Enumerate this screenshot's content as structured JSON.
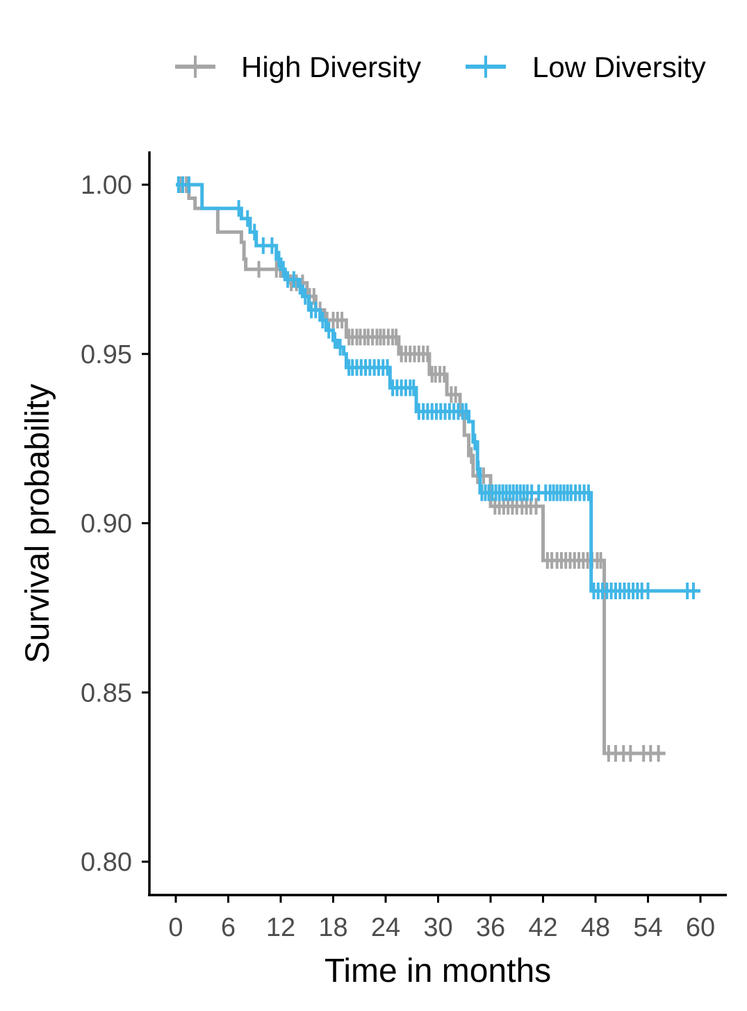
{
  "chart_data": {
    "type": "line",
    "subtype": "kaplan-meier step",
    "xlabel": "Time in months",
    "ylabel": "Survival probability",
    "xlim": [
      -2.5,
      63.5
    ],
    "ylim": [
      0.79,
      1.01
    ],
    "xticks": [
      0,
      6,
      12,
      18,
      24,
      30,
      36,
      42,
      48,
      54,
      60
    ],
    "yticks": [
      0.8,
      0.85,
      0.9,
      0.95,
      1.0
    ],
    "ytick_labels": [
      "0.80",
      "0.85",
      "0.90",
      "0.95",
      "1.00"
    ],
    "grid": false,
    "legend_position": "top",
    "series": [
      {
        "name": "High Diversity",
        "color": "#A6A6A6",
        "steps": [
          [
            0,
            1.0
          ],
          [
            1.5,
            0.996
          ],
          [
            2.2,
            0.993
          ],
          [
            4.8,
            0.986
          ],
          [
            7.5,
            0.983
          ],
          [
            7.8,
            0.978
          ],
          [
            8,
            0.975
          ],
          [
            11,
            0.975
          ],
          [
            12,
            0.973
          ],
          [
            13,
            0.971
          ],
          [
            15,
            0.967
          ],
          [
            16,
            0.963
          ],
          [
            17,
            0.96
          ],
          [
            19.5,
            0.955
          ],
          [
            25.5,
            0.95
          ],
          [
            29,
            0.944
          ],
          [
            31,
            0.938
          ],
          [
            32.5,
            0.932
          ],
          [
            33,
            0.926
          ],
          [
            33.5,
            0.92
          ],
          [
            34,
            0.914
          ],
          [
            36,
            0.905
          ],
          [
            42,
            0.889
          ],
          [
            49,
            0.832
          ],
          [
            56,
            0.832
          ]
        ],
        "censors": [
          0.5,
          1.2,
          9.5,
          11.5,
          13.2,
          13.8,
          14.5,
          15.3,
          15.8,
          16.5,
          17.3,
          18,
          18.5,
          19,
          19.8,
          20.2,
          20.7,
          21.1,
          21.6,
          22,
          22.5,
          23,
          23.4,
          23.8,
          24.3,
          24.8,
          25.2,
          25.8,
          26.3,
          26.8,
          27.3,
          27.8,
          28.3,
          28.8,
          29.3,
          29.7,
          30.2,
          30.7,
          31.5,
          32,
          33.8,
          34.5,
          35.2,
          36.5,
          37,
          37.5,
          38,
          38.5,
          39,
          39.6,
          40.1,
          40.6,
          41.2,
          42.5,
          43,
          43.6,
          44.1,
          44.6,
          45.1,
          45.6,
          46.1,
          46.6,
          47.1,
          47.6,
          48.2,
          48.6,
          49.5,
          50.3,
          51.2,
          52,
          53.5,
          54.3,
          55.2
        ]
      },
      {
        "name": "Low Diversity",
        "color": "#41B6E6",
        "steps": [
          [
            0,
            1.0
          ],
          [
            3,
            0.993
          ],
          [
            7.5,
            0.99
          ],
          [
            8.5,
            0.986
          ],
          [
            9.2,
            0.982
          ],
          [
            11.5,
            0.978
          ],
          [
            12,
            0.975
          ],
          [
            12.5,
            0.972
          ],
          [
            14,
            0.97
          ],
          [
            14.5,
            0.967
          ],
          [
            15.2,
            0.963
          ],
          [
            16.5,
            0.96
          ],
          [
            17.2,
            0.957
          ],
          [
            18,
            0.954
          ],
          [
            18.5,
            0.952
          ],
          [
            19.2,
            0.95
          ],
          [
            19.5,
            0.946
          ],
          [
            24.5,
            0.94
          ],
          [
            27.5,
            0.933
          ],
          [
            33.5,
            0.93
          ],
          [
            34,
            0.924
          ],
          [
            34.5,
            0.916
          ],
          [
            34.8,
            0.909
          ],
          [
            47.5,
            0.88
          ],
          [
            60,
            0.88
          ]
        ],
        "censors": [
          0.3,
          0.8,
          1.5,
          7.2,
          8.2,
          9,
          10,
          11,
          11.8,
          12.3,
          12.8,
          13.5,
          14.2,
          14.8,
          15.5,
          16,
          16.8,
          17.5,
          18.2,
          18.8,
          19.8,
          20.2,
          20.7,
          21.2,
          21.7,
          22.2,
          22.7,
          23.2,
          23.7,
          24.2,
          24.8,
          25.3,
          25.8,
          26.3,
          26.8,
          27.2,
          27.8,
          28.3,
          28.8,
          29.3,
          29.8,
          30.3,
          30.8,
          31.3,
          31.8,
          32.3,
          32.8,
          33.2,
          34.2,
          34.6,
          35,
          35.4,
          35.8,
          36.2,
          36.6,
          37,
          37.4,
          37.8,
          38.2,
          38.6,
          39,
          39.4,
          39.8,
          40.2,
          40.7,
          41.5,
          42.3,
          42.8,
          43.2,
          43.6,
          44,
          44.4,
          44.8,
          45.2,
          45.7,
          46.2,
          46.7,
          47.2,
          47.8,
          48.3,
          48.8,
          49.3,
          49.8,
          50.3,
          50.8,
          51.3,
          51.8,
          52.3,
          52.8,
          53.3,
          54,
          58.5,
          59.2
        ]
      }
    ]
  }
}
